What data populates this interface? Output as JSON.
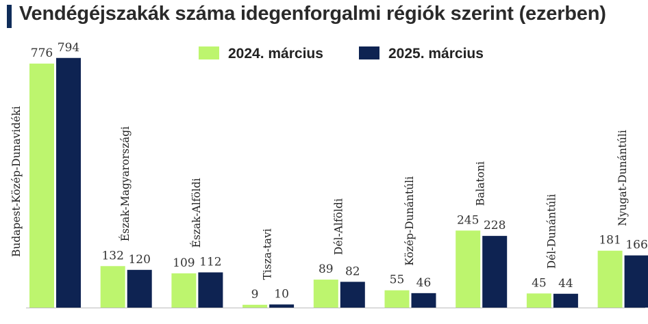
{
  "colors": {
    "accent": "#0f2c59",
    "series_2024": "#bdf56e",
    "series_2025": "#0e2352",
    "axis": "#bbbbbb"
  },
  "chart_data": {
    "type": "bar",
    "title": "Vendégéjszakák száma idegenforgalmi régiók szerint (ezerben)",
    "xlabel": "",
    "ylabel": "",
    "ylim": [
      0,
      800
    ],
    "grid": false,
    "legend": "top-center",
    "categories": [
      "Budapest-Közép-Dunavidéki",
      "Észak-Magyarországi",
      "Észak-Alföldi",
      "Tisza-tavi",
      "Dél-Alföldi",
      "Közép-Dunántúli",
      "Balatoni",
      "Dél-Dunántúli",
      "Nyugat-Dunántúli"
    ],
    "series": [
      {
        "name": "2024. március",
        "color": "#bdf56e",
        "values": [
          776,
          132,
          109,
          9,
          89,
          55,
          245,
          45,
          181
        ]
      },
      {
        "name": "2025. március",
        "color": "#0e2352",
        "values": [
          794,
          120,
          112,
          10,
          82,
          46,
          228,
          44,
          166
        ]
      }
    ]
  }
}
